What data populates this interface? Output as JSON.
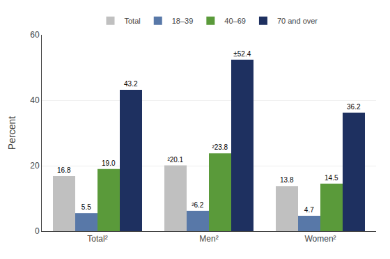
{
  "chart_data": {
    "type": "bar",
    "categories": [
      "Total²",
      "Men²",
      "Women²"
    ],
    "ylabel": "Percent",
    "series": [
      {
        "name": "Total",
        "color": "#c0c0c0",
        "values": [
          16.8,
          20.1,
          13.8
        ],
        "value_labels": [
          "16.8",
          "²20.1",
          "13.8"
        ]
      },
      {
        "name": "18–39",
        "color": "#5878a8",
        "values": [
          5.5,
          6.2,
          4.7
        ],
        "value_labels": [
          "5.5",
          "²6.2",
          "4.7"
        ]
      },
      {
        "name": "40–69",
        "color": "#5a9a3a",
        "values": [
          19.0,
          23.8,
          14.5
        ],
        "value_labels": [
          "19.0",
          "²23.8",
          "14.5"
        ]
      },
      {
        "name": "70 and over",
        "color": "#1e3060",
        "values": [
          43.2,
          52.4,
          36.2
        ],
        "value_labels": [
          "43.2",
          "±52.4",
          "36.2"
        ]
      }
    ],
    "ylim": [
      0,
      60
    ],
    "yticks": [
      0,
      20,
      40,
      60
    ],
    "grid": true,
    "legend": "top",
    "data_labels": true
  }
}
